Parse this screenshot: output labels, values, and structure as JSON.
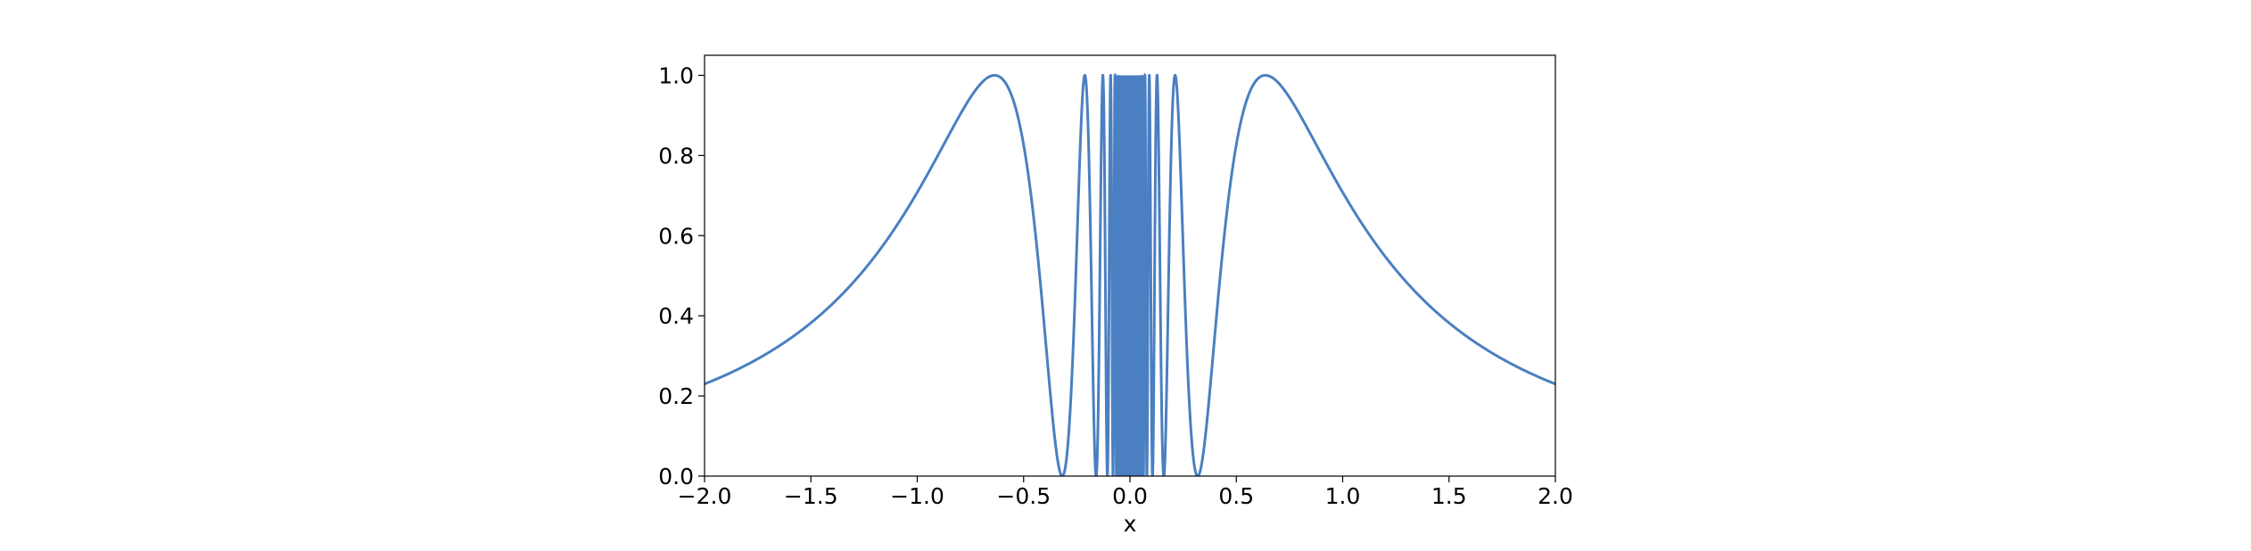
{
  "chart_data": {
    "type": "line",
    "title": "",
    "xlabel": "x",
    "ylabel": "",
    "xlim": [
      -2.0,
      2.0
    ],
    "ylim": [
      0.0,
      1.05
    ],
    "grid": false,
    "legend": "none",
    "function_note": "y = sin(1/x)^2",
    "x_ticks": [
      -2.0,
      -1.5,
      -1.0,
      -0.5,
      0.0,
      0.5,
      1.0,
      1.5,
      2.0
    ],
    "x_tick_labels": [
      "−2.0",
      "−1.5",
      "−1.0",
      "−0.5",
      "0.0",
      "0.5",
      "1.0",
      "1.5",
      "2.0"
    ],
    "y_ticks": [
      0.0,
      0.2,
      0.4,
      0.6,
      0.8,
      1.0
    ],
    "y_tick_labels": [
      "0.0",
      "0.2",
      "0.4",
      "0.6",
      "0.8",
      "1.0"
    ],
    "series": [
      {
        "color": "#4a7fc1",
        "x": [
          -2.0,
          -1.75,
          -1.5,
          -1.25,
          -1.0,
          -0.8,
          -0.7,
          -0.637,
          -0.55,
          -0.45,
          -0.4,
          -0.35,
          -0.318,
          -0.28,
          -0.25,
          -0.22,
          -0.212,
          -0.19,
          -0.17,
          -0.159,
          -0.15,
          -0.13,
          -0.127,
          -0.1,
          -0.08,
          -0.06,
          -0.04,
          -0.02,
          0.0,
          0.02,
          0.04,
          0.06,
          0.08,
          0.1,
          0.127,
          0.13,
          0.15,
          0.159,
          0.17,
          0.19,
          0.212,
          0.22,
          0.25,
          0.28,
          0.318,
          0.35,
          0.4,
          0.45,
          0.55,
          0.637,
          0.7,
          0.8,
          1.0,
          1.25,
          1.5,
          1.75,
          2.0
        ],
        "y": [
          0.23,
          0.289,
          0.383,
          0.532,
          0.708,
          0.9,
          0.98,
          1.0,
          0.94,
          0.63,
          0.358,
          0.092,
          0.0,
          0.188,
          0.573,
          0.95,
          1.0,
          0.59,
          0.1,
          0.0,
          0.151,
          0.93,
          1.0,
          0.296,
          0.003,
          0.828,
          0.018,
          0.069,
          0.0,
          0.069,
          0.018,
          0.828,
          0.003,
          0.296,
          1.0,
          0.93,
          0.151,
          0.0,
          0.1,
          0.59,
          1.0,
          0.95,
          0.573,
          0.188,
          0.0,
          0.092,
          0.358,
          0.63,
          0.94,
          1.0,
          0.98,
          0.9,
          0.708,
          0.532,
          0.383,
          0.289,
          0.23
        ]
      }
    ]
  }
}
